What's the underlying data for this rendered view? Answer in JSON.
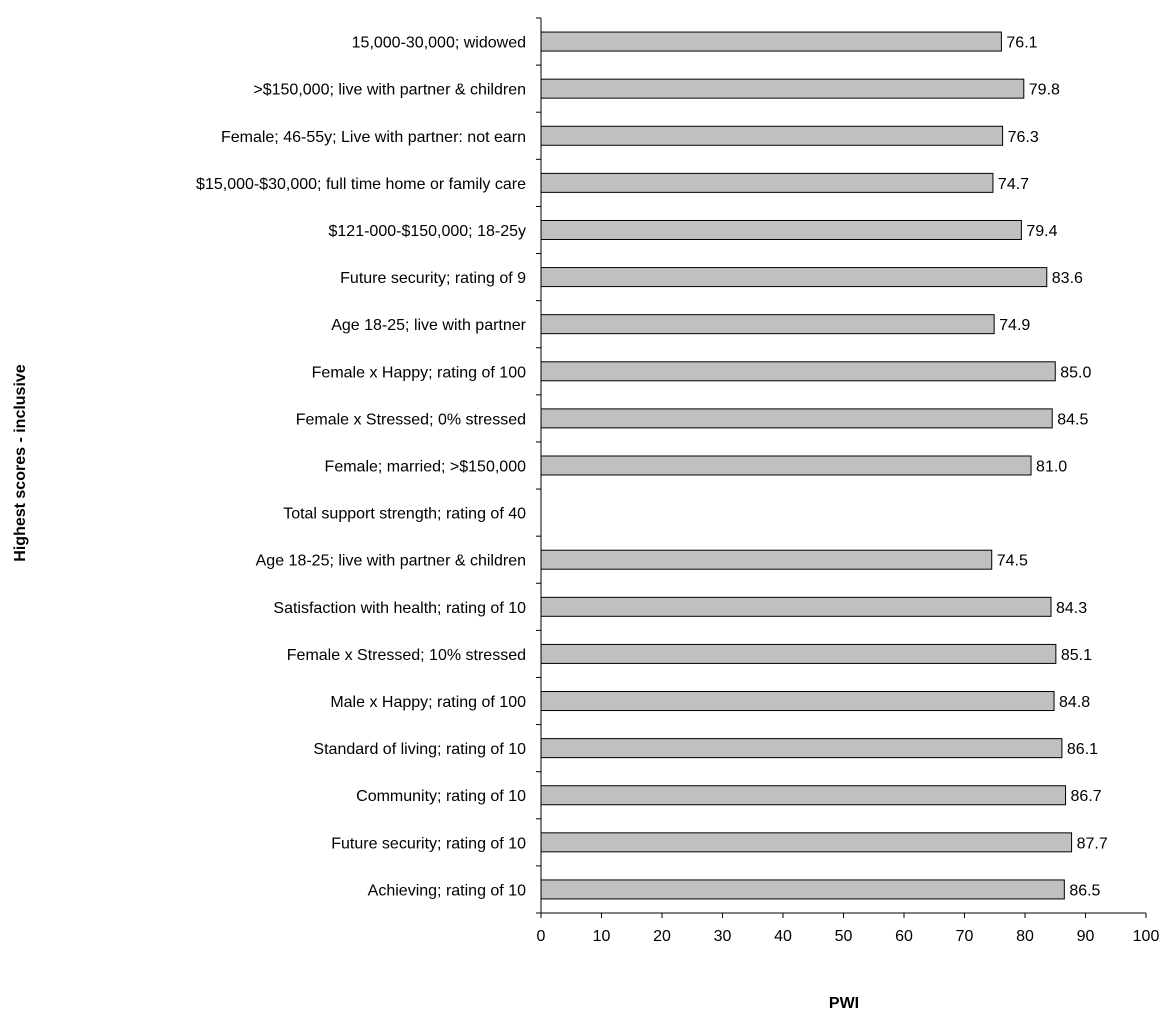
{
  "chart_data": {
    "type": "bar",
    "orientation": "horizontal",
    "xlabel": "PWI",
    "ylabel": "Highest scores - inclusive",
    "xlim": [
      0,
      100
    ],
    "x_ticks": [
      0,
      10,
      20,
      30,
      40,
      50,
      60,
      70,
      80,
      90,
      100
    ],
    "grid": false,
    "legend": "none",
    "bar_color": "#C0C0C0",
    "bar_edge_color": "#000000",
    "categories": [
      "15,000-30,000; widowed",
      ">$150,000; live with partner & children",
      "Female; 46-55y; Live with partner: not earn",
      "$15,000-$30,000; full time home or family care",
      "$121-000-$150,000; 18-25y",
      "Future security; rating of 9",
      "Age 18-25; live with partner",
      "Female x Happy; rating of 100",
      "Female x Stressed; 0% stressed",
      "Female; married; >$150,000",
      "Total support strength; rating of 40",
      "Age 18-25; live with partner & children",
      "Satisfaction with health; rating of 10",
      "Female x Stressed; 10% stressed",
      "Male x Happy; rating of 100",
      "Standard of living; rating of 10",
      "Community; rating of 10",
      "Future security; rating of 10",
      "Achieving; rating of 10"
    ],
    "values": [
      76.1,
      79.8,
      76.3,
      74.7,
      79.4,
      83.6,
      74.9,
      85.0,
      84.5,
      81.0,
      null,
      74.5,
      84.3,
      85.1,
      84.8,
      86.1,
      86.7,
      87.7,
      86.5
    ],
    "value_labels": [
      "76.1",
      "79.8",
      "76.3",
      "74.7",
      "79.4",
      "83.6",
      "74.9",
      "85.0",
      "84.5",
      "81.0",
      "",
      "74.5",
      "84.3",
      "85.1",
      "84.8",
      "86.1",
      "86.7",
      "87.7",
      "86.5"
    ]
  }
}
